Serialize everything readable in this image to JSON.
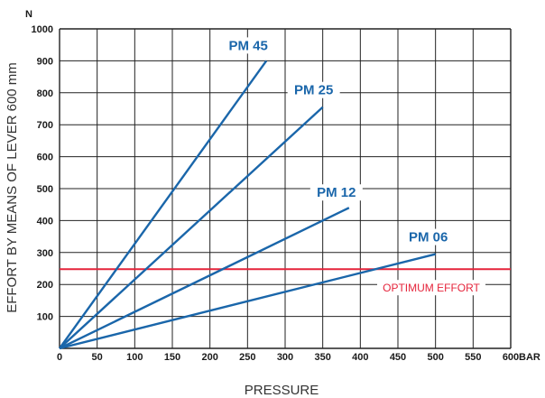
{
  "chart_data": {
    "type": "line",
    "xlabel": "PRESSURE",
    "ylabel": "EFFORT BY MEANS OF LEVER 600 mm",
    "x_unit": "BAR",
    "y_unit": "N",
    "xlim": [
      0,
      600
    ],
    "ylim": [
      0,
      1000
    ],
    "x_ticks": [
      "0",
      "50",
      "100",
      "150",
      "200",
      "250",
      "300",
      "350",
      "400",
      "450",
      "500",
      "550",
      "600"
    ],
    "y_ticks": [
      "100",
      "200",
      "300",
      "400",
      "500",
      "600",
      "700",
      "800",
      "900",
      "1000"
    ],
    "grid": true,
    "series": [
      {
        "name": "PM 45",
        "color": "#1a66aa",
        "points": [
          [
            0,
            0
          ],
          [
            275,
            900
          ]
        ]
      },
      {
        "name": "PM 25",
        "color": "#1a66aa",
        "points": [
          [
            0,
            0
          ],
          [
            350,
            755
          ]
        ]
      },
      {
        "name": "PM 12",
        "color": "#1a66aa",
        "points": [
          [
            0,
            0
          ],
          [
            385,
            440
          ]
        ]
      },
      {
        "name": "PM 06",
        "color": "#1a66aa",
        "points": [
          [
            0,
            0
          ],
          [
            500,
            295
          ]
        ]
      }
    ],
    "reference_lines": [
      {
        "label": "OPTIMUM EFFORT",
        "y": 248,
        "color": "#e5243b"
      }
    ]
  }
}
